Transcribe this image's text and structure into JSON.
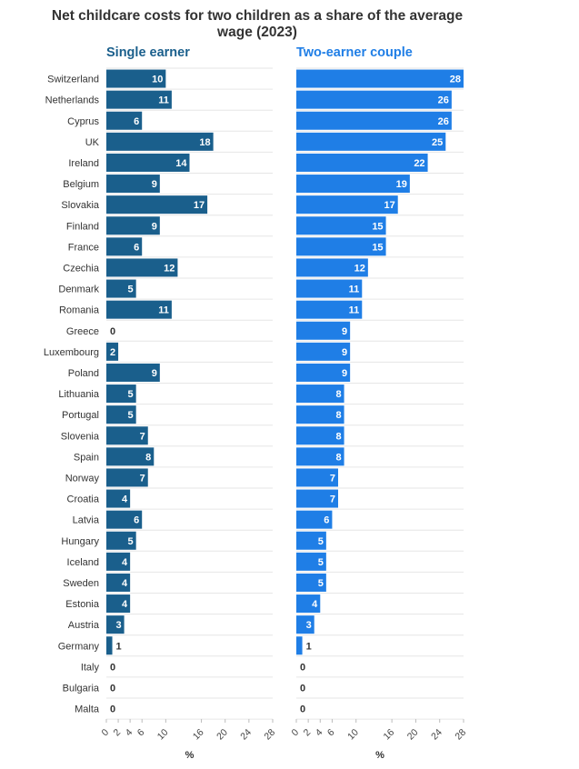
{
  "title_line1": "Net childcare costs for two children as a share of the average",
  "title_line2": "wage (2023)",
  "chart_data": {
    "type": "bar",
    "orientation": "horizontal",
    "categories": [
      "Switzerland",
      "Netherlands",
      "Cyprus",
      "UK",
      "Ireland",
      "Belgium",
      "Slovakia",
      "Finland",
      "France",
      "Czechia",
      "Denmark",
      "Romania",
      "Greece",
      "Luxembourg",
      "Poland",
      "Lithuania",
      "Portugal",
      "Slovenia",
      "Spain",
      "Norway",
      "Croatia",
      "Latvia",
      "Hungary",
      "Iceland",
      "Sweden",
      "Estonia",
      "Austria",
      "Germany",
      "Italy",
      "Bulgaria",
      "Malta"
    ],
    "series": [
      {
        "name": "Single earner",
        "color": "#1a5f8c",
        "values": [
          10,
          11,
          6,
          18,
          14,
          9,
          17,
          9,
          6,
          12,
          5,
          11,
          0,
          2,
          9,
          5,
          5,
          7,
          8,
          7,
          4,
          6,
          5,
          4,
          4,
          4,
          3,
          1,
          0,
          0,
          0
        ]
      },
      {
        "name": "Two-earner couple",
        "color": "#1f7ee6",
        "values": [
          28,
          26,
          26,
          25,
          22,
          19,
          17,
          15,
          15,
          12,
          11,
          11,
          9,
          9,
          9,
          8,
          8,
          8,
          8,
          7,
          7,
          6,
          5,
          5,
          5,
          4,
          3,
          1,
          0,
          0,
          0
        ]
      }
    ],
    "xlim": [
      0,
      28
    ],
    "xticks": [
      0,
      2,
      4,
      6,
      10,
      16,
      20,
      24,
      28
    ],
    "xlabel": "%",
    "grid": true
  }
}
